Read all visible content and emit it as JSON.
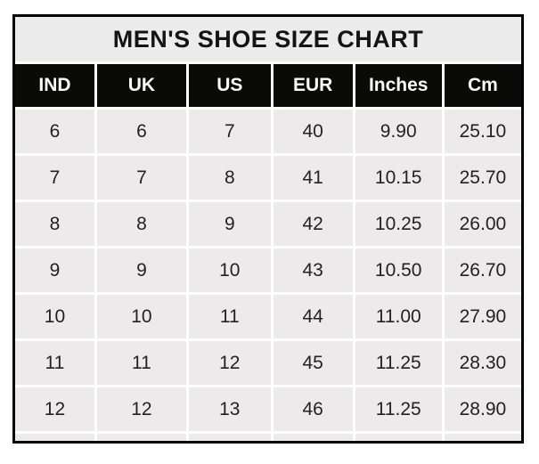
{
  "title": "MEN'S SHOE SIZE CHART",
  "chart_data": {
    "type": "table",
    "title": "MEN'S SHOE SIZE CHART",
    "columns": [
      "IND",
      "UK",
      "US",
      "EUR",
      "Inches",
      "Cm"
    ],
    "rows": [
      [
        "6",
        "6",
        "7",
        "40",
        "9.90",
        "25.10"
      ],
      [
        "7",
        "7",
        "8",
        "41",
        "10.15",
        "25.70"
      ],
      [
        "8",
        "8",
        "9",
        "42",
        "10.25",
        "26.00"
      ],
      [
        "9",
        "9",
        "10",
        "43",
        "10.50",
        "26.70"
      ],
      [
        "10",
        "10",
        "11",
        "44",
        "11.00",
        "27.90"
      ],
      [
        "11",
        "11",
        "12",
        "45",
        "11.25",
        "28.30"
      ],
      [
        "12",
        "12",
        "13",
        "46",
        "11.25",
        "28.90"
      ]
    ],
    "layout": {
      "grid": "white gridlines between gray cells",
      "header_style": "black band with white bold labels",
      "outer_border": "black"
    }
  },
  "colors": {
    "page_background": "#ffffff",
    "cell_background": "#eceaea",
    "title_background": "#edecec",
    "header_background": "#0a0a09",
    "header_text": "#fbfbfb",
    "body_text": "#222222",
    "border": "#010101",
    "gridline": "#ffffff"
  }
}
